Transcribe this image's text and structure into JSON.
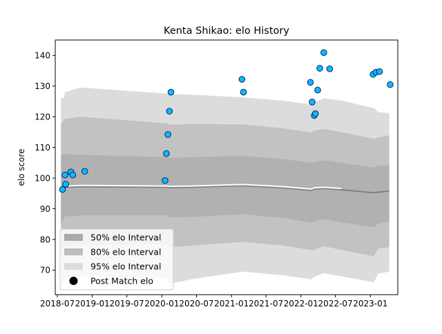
{
  "chart_data": {
    "type": "scatter",
    "title": "Kenta Shikao: elo History",
    "xlabel": "",
    "ylabel": "elo score",
    "xlim": [
      "2018-06-20",
      "2023-05-25"
    ],
    "ylim": [
      62,
      145
    ],
    "x_ticks": [
      "2018-07",
      "2019-01",
      "2019-07",
      "2020-01",
      "2020-07",
      "2021-01",
      "2021-07",
      "2022-01",
      "2022-07",
      "2023-01"
    ],
    "y_ticks": [
      70,
      80,
      90,
      100,
      110,
      120,
      130,
      140
    ],
    "grid": false,
    "legend": {
      "placement": "lower-left",
      "entries": [
        "50% elo Interval",
        "80% elo Interval",
        "95% elo Interval",
        "Post Match elo"
      ]
    },
    "colors": {
      "band_50": "#a9a9a9",
      "band_80": "#bdbdbd",
      "band_95": "#dcdcdc",
      "mean_line": "#808080",
      "mean_highlight": "#ffffff",
      "point_fill": "#00bfff",
      "point_edge": "#1a1a66"
    },
    "bands": {
      "x": [
        "2018-07-20",
        "2018-08-05",
        "2018-08-10",
        "2018-11-01",
        "2020-02-01",
        "2020-02-10",
        "2020-06-01",
        "2021-03-01",
        "2021-10-01",
        "2022-02-25",
        "2022-03-10",
        "2022-05-01",
        "2022-08-01",
        "2023-01-20",
        "2023-02-10",
        "2023-04-10"
      ],
      "mean": [
        96.5,
        96.8,
        97.0,
        97.2,
        97.0,
        96.9,
        97.0,
        97.5,
        96.8,
        96.0,
        96.4,
        96.6,
        96.2,
        95.2,
        95.4,
        95.8
      ],
      "lo50": [
        85.0,
        87.0,
        87.5,
        87.8,
        87.8,
        87.2,
        87.3,
        88.2,
        87.0,
        85.5,
        85.8,
        86.6,
        85.6,
        84.0,
        85.2,
        85.8
      ],
      "hi50": [
        107.5,
        107.7,
        107.8,
        107.6,
        106.8,
        106.6,
        106.8,
        107.3,
        106.2,
        105.0,
        105.3,
        105.8,
        105.0,
        103.4,
        104.2,
        104.0
      ],
      "lo80": [
        75.0,
        77.0,
        77.6,
        78.0,
        78.4,
        77.4,
        78.0,
        79.2,
        78.0,
        76.5,
        76.6,
        77.8,
        76.6,
        74.5,
        77.0,
        77.5
      ],
      "hi80": [
        117.8,
        119.0,
        119.3,
        120.0,
        117.8,
        117.4,
        117.6,
        117.5,
        116.2,
        114.8,
        115.5,
        116.0,
        115.0,
        112.8,
        113.2,
        114.0
      ],
      "lo95": [
        64.0,
        66.5,
        67.2,
        68.0,
        67.2,
        65.5,
        67.0,
        69.5,
        68.3,
        67.0,
        67.8,
        69.0,
        68.0,
        66.0,
        68.8,
        69.5
      ],
      "hi95": [
        126.0,
        126.2,
        128.0,
        129.5,
        127.5,
        127.4,
        127.2,
        126.3,
        125.2,
        124.0,
        124.5,
        126.0,
        125.3,
        122.8,
        121.5,
        121.2
      ]
    },
    "points": [
      {
        "x": "2018-07-28",
        "y": 96.3
      },
      {
        "x": "2018-08-10",
        "y": 101.0
      },
      {
        "x": "2018-08-14",
        "y": 98.0
      },
      {
        "x": "2018-09-10",
        "y": 102.0
      },
      {
        "x": "2018-09-20",
        "y": 101.0
      },
      {
        "x": "2018-11-22",
        "y": 102.2
      },
      {
        "x": "2020-01-18",
        "y": 99.2
      },
      {
        "x": "2020-01-25",
        "y": 108.0
      },
      {
        "x": "2020-02-02",
        "y": 114.2
      },
      {
        "x": "2020-02-10",
        "y": 121.8
      },
      {
        "x": "2020-02-18",
        "y": 128.0
      },
      {
        "x": "2021-02-25",
        "y": 132.2
      },
      {
        "x": "2021-03-05",
        "y": 128.0
      },
      {
        "x": "2022-02-20",
        "y": 131.2
      },
      {
        "x": "2022-03-01",
        "y": 124.8
      },
      {
        "x": "2022-03-12",
        "y": 120.4
      },
      {
        "x": "2022-03-18",
        "y": 121.0
      },
      {
        "x": "2022-03-30",
        "y": 128.7
      },
      {
        "x": "2022-04-10",
        "y": 135.8
      },
      {
        "x": "2022-05-01",
        "y": 140.9
      },
      {
        "x": "2022-06-01",
        "y": 135.6
      },
      {
        "x": "2023-01-15",
        "y": 133.8
      },
      {
        "x": "2023-01-30",
        "y": 134.5
      },
      {
        "x": "2023-02-18",
        "y": 134.7
      },
      {
        "x": "2023-04-15",
        "y": 130.5
      }
    ]
  }
}
